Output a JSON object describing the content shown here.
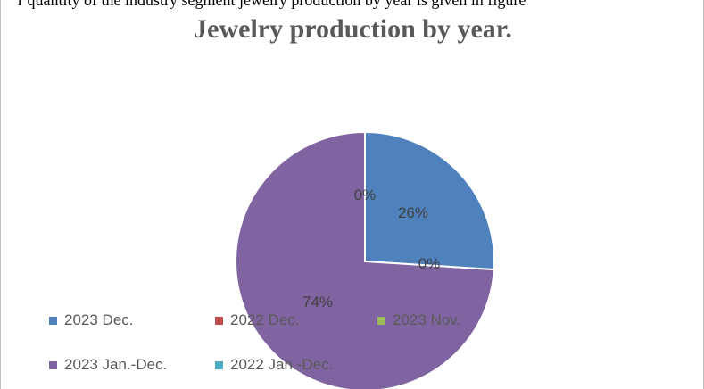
{
  "caption_fragment": "r quantity of the industry segment jewelry production by year is given in figure",
  "chart_data": {
    "type": "pie",
    "title": "Jewelry production by year.",
    "categories": [
      "2023 Dec.",
      "2022 Dec.",
      "2023 Nov.",
      "2023 Jan.-Dec.",
      "2022 Jan.-Dec."
    ],
    "values": [
      26,
      0,
      0,
      74,
      0
    ],
    "data_labels": [
      "26%",
      "0%",
      "0%",
      "74%",
      "0%"
    ],
    "colors": [
      "#4f81bd",
      "#c0504d",
      "#9bbb59",
      "#8064a2",
      "#4bacc6"
    ],
    "legend": "bottom-left"
  }
}
